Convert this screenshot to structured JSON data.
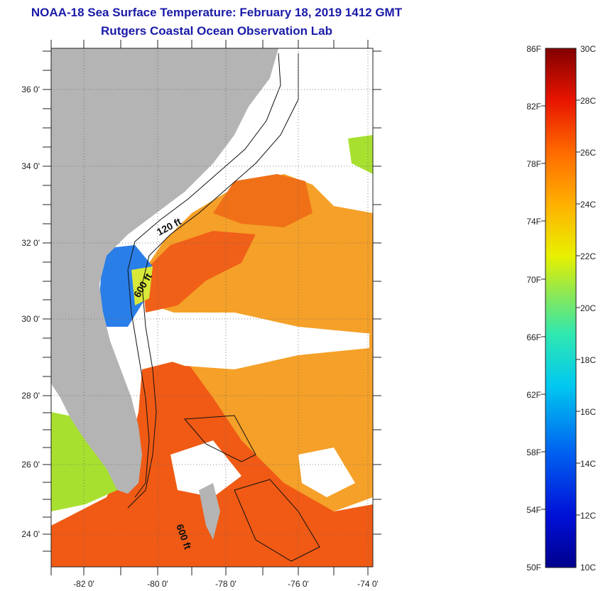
{
  "header": {
    "title_line1": "NOAA-18 Sea Surface Temperature:  February 18, 2019 1412 GMT",
    "title_line2": "Rutgers Coastal Ocean Observation Lab"
  },
  "map": {
    "lat_labels": [
      "36 0'",
      "34 0'",
      "32 0'",
      "30 0'",
      "28 0'",
      "26 0'",
      "24 0'"
    ],
    "lon_labels": [
      "-82 0'",
      "-80 0'",
      "-78 0'",
      "-76 0'",
      "-74 0'"
    ],
    "contour_labels": [
      "120 ft",
      "600 ft",
      "600 ft"
    ],
    "colors": {
      "land": "#b4b4b4",
      "cloud": "#ffffff",
      "warm_water": "#f05a14",
      "mid_water": "#f5a028",
      "cool_water": "#2a7ee8"
    }
  },
  "colorbar": {
    "f_labels": [
      "86F",
      "82F",
      "78F",
      "74F",
      "70F",
      "66F",
      "62F",
      "58F",
      "54F",
      "50F"
    ],
    "c_labels": [
      "30C",
      "28C",
      "26C",
      "24C",
      "22C",
      "20C",
      "18C",
      "16C",
      "14C",
      "12C",
      "10C"
    ]
  }
}
